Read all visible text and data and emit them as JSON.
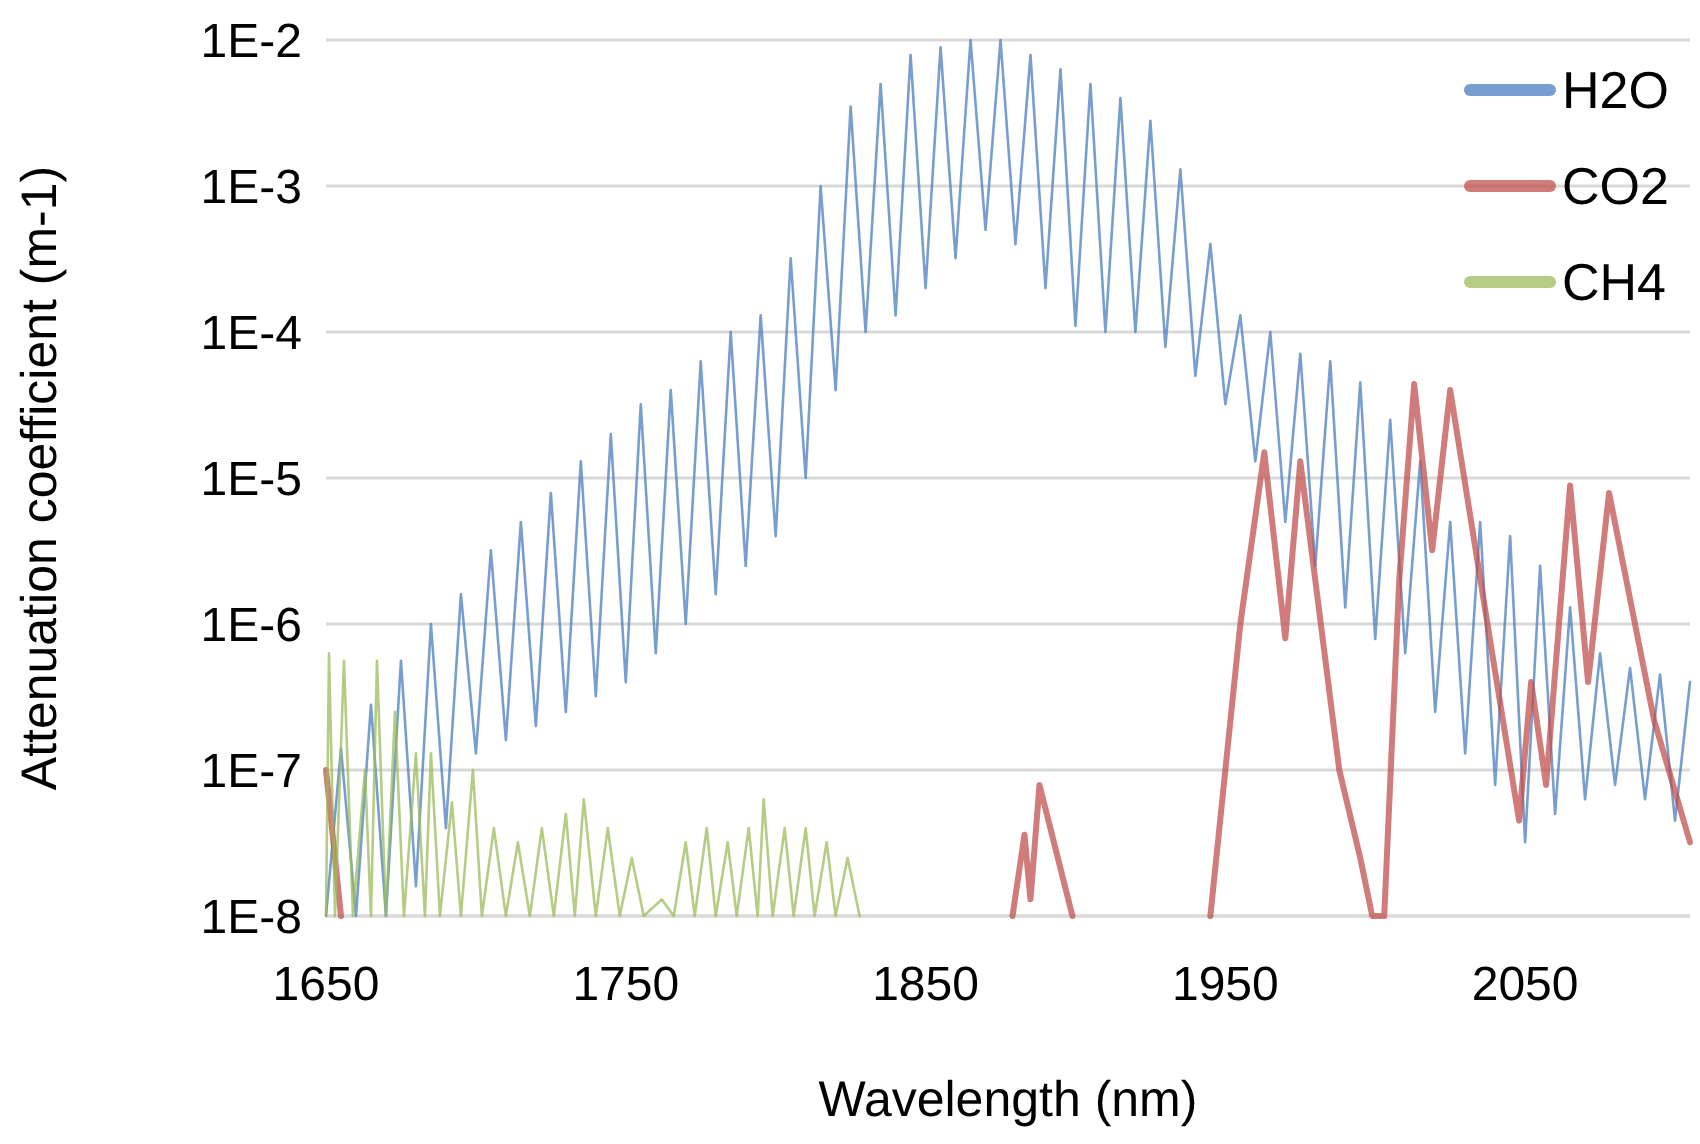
{
  "chart_data": {
    "type": "line",
    "xlabel": "Wavelength (nm)",
    "ylabel": "Attenuation coefficient (m-1)",
    "log": "y",
    "grid": "y",
    "legend": "top right",
    "xlim": [
      1650,
      2105
    ],
    "xticks": [
      1650,
      1750,
      1850,
      1950,
      2050
    ],
    "ylim": [
      1e-08,
      0.01
    ],
    "yticks": [
      {
        "value": 1e-08,
        "label": "1E-8"
      },
      {
        "value": 1e-07,
        "label": "1E-7"
      },
      {
        "value": 1e-06,
        "label": "1E-6"
      },
      {
        "value": 1e-05,
        "label": "1E-5"
      },
      {
        "value": 0.0001,
        "label": "1E-4"
      },
      {
        "value": 0.001,
        "label": "1E-3"
      },
      {
        "value": 0.01,
        "label": "1E-2"
      }
    ],
    "series": [
      {
        "name": "H2O",
        "color": "#4a7ebf",
        "x": [
          1650,
          1655,
          1660,
          1665,
          1670,
          1675,
          1680,
          1685,
          1690,
          1695,
          1700,
          1705,
          1710,
          1715,
          1720,
          1725,
          1730,
          1735,
          1740,
          1745,
          1750,
          1755,
          1760,
          1765,
          1770,
          1775,
          1780,
          1785,
          1790,
          1795,
          1800,
          1805,
          1810,
          1815,
          1820,
          1825,
          1830,
          1835,
          1840,
          1845,
          1850,
          1855,
          1860,
          1865,
          1870,
          1875,
          1880,
          1885,
          1890,
          1895,
          1900,
          1905,
          1910,
          1915,
          1920,
          1925,
          1930,
          1935,
          1940,
          1945,
          1950,
          1955,
          1960,
          1965,
          1970,
          1975,
          1980,
          1985,
          1990,
          1995,
          2000,
          2005,
          2010,
          2015,
          2020,
          2025,
          2030,
          2035,
          2040,
          2045,
          2050,
          2055,
          2060,
          2065,
          2070,
          2075,
          2080,
          2085,
          2090,
          2095,
          2100,
          2105
        ],
        "values": [
          1e-08,
          1.4e-07,
          1e-08,
          2.8e-07,
          1e-08,
          5.6e-07,
          1.6e-08,
          1e-06,
          4e-08,
          1.6e-06,
          1.3e-07,
          3.2e-06,
          1.6e-07,
          5e-06,
          2e-07,
          7.9e-06,
          2.5e-07,
          1.3e-05,
          3.2e-07,
          2e-05,
          4e-07,
          3.2e-05,
          6.3e-07,
          4e-05,
          1e-06,
          6.3e-05,
          1.6e-06,
          0.0001,
          2.5e-06,
          0.00013,
          4e-06,
          0.00032,
          1e-05,
          0.001,
          4e-05,
          0.0035,
          0.0001,
          0.005,
          0.00013,
          0.0079,
          0.0002,
          0.0089,
          0.00032,
          0.01,
          0.0005,
          0.01,
          0.0004,
          0.0079,
          0.0002,
          0.0063,
          0.00011,
          0.005,
          0.0001,
          0.004,
          0.0001,
          0.0028,
          7.9e-05,
          0.0013,
          5e-05,
          0.0004,
          3.2e-05,
          0.00013,
          1.3e-05,
          0.0001,
          5e-06,
          7.1e-05,
          2.5e-06,
          6.3e-05,
          1.3e-06,
          4.5e-05,
          7.9e-07,
          2.5e-05,
          6.3e-07,
          1.3e-05,
          2.5e-07,
          5e-06,
          1.3e-07,
          5e-06,
          7.9e-08,
          4e-06,
          3.2e-08,
          2.5e-06,
          5e-08,
          1.3e-06,
          6.3e-08,
          6.3e-07,
          7.9e-08,
          5e-07,
          6.3e-08,
          4.5e-07,
          4.5e-08,
          4e-07
        ]
      },
      {
        "name": "CO2",
        "color": "#c0504d",
        "x": [
          1650,
          1655,
          1660,
          1879,
          1883,
          1885,
          1888,
          1899,
          1920,
          1945,
          1955,
          1963,
          1970,
          1975,
          1988,
          1995,
          1999,
          2003,
          2008,
          2013,
          2019,
          2025,
          2039,
          2048,
          2052,
          2057,
          2065,
          2071,
          2078,
          2093,
          2105
        ],
        "values": [
          1e-07,
          1e-08,
          null,
          1e-08,
          3.6e-08,
          1.3e-08,
          7.9e-08,
          1e-08,
          null,
          1e-08,
          1e-06,
          1.5e-05,
          8e-07,
          1.3e-05,
          1e-07,
          2.5e-08,
          1e-08,
          1e-08,
          2e-06,
          4.4e-05,
          3.2e-06,
          4e-05,
          6.3e-07,
          4.5e-08,
          4e-07,
          7.9e-08,
          8.9e-06,
          4e-07,
          7.9e-06,
          2.2e-07,
          3.2e-08
        ]
      },
      {
        "name": "CH4",
        "color": "#9bbb59",
        "x": [
          1650,
          1651,
          1653,
          1656,
          1659,
          1663,
          1665,
          1667,
          1670,
          1673,
          1676,
          1680,
          1683,
          1685,
          1688,
          1692,
          1695,
          1699,
          1702,
          1706,
          1710,
          1714,
          1718,
          1722,
          1726,
          1730,
          1733,
          1736,
          1740,
          1744,
          1748,
          1752,
          1756,
          1762,
          1766,
          1770,
          1773,
          1777,
          1780,
          1784,
          1787,
          1791,
          1794,
          1796,
          1799,
          1803,
          1806,
          1810,
          1813,
          1817,
          1820,
          1824,
          1828
        ],
        "values": [
          1e-08,
          6.3e-07,
          1e-08,
          5.6e-07,
          1e-08,
          1e-07,
          1e-08,
          5.6e-07,
          1e-08,
          2.5e-07,
          1e-08,
          1.3e-07,
          1e-08,
          1.3e-07,
          1e-08,
          6e-08,
          1e-08,
          1e-07,
          1e-08,
          4e-08,
          1e-08,
          3.2e-08,
          1e-08,
          4e-08,
          1e-08,
          5e-08,
          1e-08,
          6.3e-08,
          1e-08,
          4e-08,
          1e-08,
          2.5e-08,
          1e-08,
          1.3e-08,
          1e-08,
          3.2e-08,
          1e-08,
          4e-08,
          1e-08,
          3.2e-08,
          1e-08,
          4e-08,
          1e-08,
          6.3e-08,
          1e-08,
          4e-08,
          1e-08,
          4e-08,
          1e-08,
          3.2e-08,
          1e-08,
          2.5e-08,
          1e-08
        ]
      }
    ]
  }
}
